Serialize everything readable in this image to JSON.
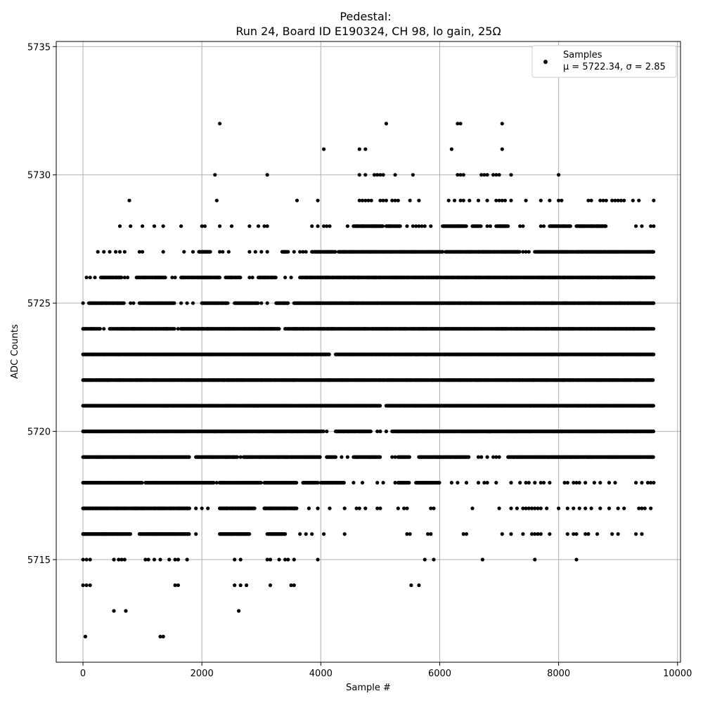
{
  "chart_data": {
    "type": "scatter",
    "title": "Pedestal:",
    "subtitle": "Run 24, Board ID E190324, CH 98, lo gain, 25Ω",
    "xlabel": "Sample #",
    "ylabel": "ADC Counts",
    "xlim": [
      -450,
      10050
    ],
    "ylim": [
      5711,
      5735.2
    ],
    "x_ticks": [
      0,
      2000,
      4000,
      6000,
      8000,
      10000
    ],
    "x_tick_labels": [
      "0",
      "2000",
      "4000",
      "6000",
      "8000",
      "10000"
    ],
    "y_ticks": [
      5715,
      5720,
      5725,
      5730,
      5735
    ],
    "y_tick_labels": [
      "5715",
      "5720",
      "5725",
      "5730",
      "5735"
    ],
    "grid": true,
    "legend": {
      "placement": "top-right",
      "series_name": "Samples",
      "stats_line": "μ = 5722.34, σ = 2.85"
    },
    "marker_color": "#000000",
    "n_samples": 9600,
    "levels": [
      {
        "adc": 5712,
        "x": [
          40,
          1300,
          1350
        ]
      },
      {
        "adc": 5713,
        "x": [
          520,
          720,
          2620
        ]
      },
      {
        "adc": 5714,
        "x": [
          0,
          60,
          120,
          1550,
          1600,
          2550,
          2650,
          2750,
          3150,
          3500,
          3550,
          5520,
          5650
        ]
      },
      {
        "adc": 5715,
        "x": [
          0,
          60,
          120,
          520,
          600,
          650,
          700,
          1050,
          1100,
          1200,
          1300,
          1450,
          1550,
          1600,
          1750,
          2550,
          2650,
          3100,
          3150,
          3300,
          3400,
          3450,
          3550,
          3950,
          5750,
          5900,
          6720,
          7600,
          8300
        ]
      },
      {
        "adc": 5716,
        "segments": [
          [
            0,
            800
          ],
          [
            950,
            1800
          ],
          [
            2300,
            2800
          ],
          [
            3100,
            3400
          ]
        ],
        "x": [
          1900,
          3650,
          3750,
          3850,
          4050,
          4400,
          5450,
          5500,
          5800,
          5850,
          6400,
          6450,
          7050,
          7200,
          7400,
          7550,
          7600,
          7650,
          7700,
          7850,
          8150,
          8250,
          8300,
          8450,
          8500,
          8650,
          8900,
          9000,
          9300,
          9400
        ]
      },
      {
        "adc": 5717,
        "segments": [
          [
            0,
            1800
          ],
          [
            2300,
            2900
          ],
          [
            3050,
            3600
          ]
        ],
        "x": [
          1900,
          2000,
          2100,
          3800,
          3950,
          4150,
          4400,
          4600,
          4650,
          4750,
          4950,
          5000,
          5300,
          5400,
          5450,
          5850,
          5900,
          6550,
          7000,
          7200,
          7300,
          7400,
          7450,
          7500,
          7550,
          7600,
          7650,
          7700,
          7800,
          8000,
          8150,
          8250,
          8350,
          8450,
          8550,
          8700,
          8850,
          9000,
          9100,
          9350,
          9400,
          9450,
          9550
        ]
      },
      {
        "adc": 5718,
        "segments": [
          [
            0,
            1000
          ],
          [
            1050,
            2200
          ],
          [
            2300,
            3000
          ],
          [
            3050,
            3600
          ],
          [
            3700,
            3950
          ],
          [
            4000,
            4400
          ],
          [
            5300,
            5500
          ],
          [
            5600,
            6000
          ]
        ],
        "x": [
          2250,
          4550,
          4700,
          4950,
          5050,
          5250,
          6200,
          6300,
          6450,
          6650,
          6750,
          6800,
          6950,
          7200,
          7350,
          7450,
          7500,
          7600,
          7700,
          7750,
          7850,
          8100,
          8150,
          8250,
          8300,
          8350,
          8450,
          8600,
          8700,
          8850,
          8950,
          9300,
          9400,
          9500,
          9550,
          9600
        ]
      },
      {
        "adc": 5719,
        "segments": [
          [
            0,
            1800
          ],
          [
            1900,
            2600
          ],
          [
            2700,
            4000
          ],
          [
            4100,
            4250
          ],
          [
            4550,
            5000
          ],
          [
            5300,
            5500
          ],
          [
            5650,
            6500
          ],
          [
            7150,
            9600
          ]
        ],
        "x": [
          2650,
          4350,
          4450,
          5200,
          5250,
          6650,
          6700,
          6800,
          6900,
          6950,
          7000
        ]
      },
      {
        "adc": 5720,
        "segments": [
          [
            0,
            4050
          ],
          [
            4250,
            4850
          ],
          [
            5200,
            9600
          ]
        ],
        "x": [
          4100,
          4950,
          5000,
          5100
        ]
      },
      {
        "adc": 5721,
        "segments": [
          [
            0,
            5000
          ],
          [
            5100,
            9600
          ]
        ],
        "x": []
      },
      {
        "adc": 5722,
        "segments": [
          [
            0,
            9600
          ]
        ],
        "x": []
      },
      {
        "adc": 5723,
        "segments": [
          [
            0,
            4150
          ],
          [
            4250,
            9600
          ]
        ],
        "x": []
      },
      {
        "adc": 5724,
        "segments": [
          [
            0,
            300
          ],
          [
            450,
            1550
          ],
          [
            1650,
            3300
          ],
          [
            3400,
            9600
          ]
        ],
        "x": [
          350,
          1600
        ]
      },
      {
        "adc": 5725,
        "segments": [
          [
            100,
            700
          ],
          [
            950,
            1550
          ],
          [
            2000,
            2450
          ],
          [
            2550,
            2950
          ],
          [
            3250,
            3450
          ],
          [
            3550,
            9600
          ]
        ],
        "x": [
          0,
          800,
          850,
          1650,
          1750,
          1850,
          3000,
          3100
        ]
      },
      {
        "adc": 5726,
        "segments": [
          [
            300,
            650
          ],
          [
            900,
            1400
          ],
          [
            1650,
            2300
          ],
          [
            2400,
            2650
          ],
          [
            2950,
            3250
          ],
          [
            3650,
            9600
          ]
        ],
        "x": [
          60,
          120,
          200,
          700,
          750,
          1500,
          1550,
          2800,
          2850,
          3400,
          3500
        ]
      },
      {
        "adc": 5727,
        "segments": [
          [
            1950,
            2150
          ],
          [
            3350,
            3450
          ],
          [
            3850,
            4250
          ],
          [
            4300,
            6050
          ],
          [
            6100,
            7350
          ],
          [
            7600,
            9600
          ]
        ],
        "x": [
          250,
          350,
          450,
          550,
          620,
          700,
          950,
          1000,
          1350,
          1700,
          1850,
          2300,
          2350,
          2450,
          2800,
          2900,
          3000,
          3100,
          3550,
          3650,
          3700,
          3750,
          7400,
          7450,
          7500
        ]
      },
      {
        "adc": 5728,
        "segments": [
          [
            4550,
            5050
          ],
          [
            5100,
            5350
          ],
          [
            6050,
            6450
          ],
          [
            6550,
            6700
          ],
          [
            6950,
            7150
          ],
          [
            7850,
            8200
          ],
          [
            8300,
            8800
          ]
        ],
        "x": [
          620,
          800,
          1000,
          1200,
          1350,
          1650,
          2000,
          2050,
          2300,
          2500,
          2800,
          2950,
          3050,
          3100,
          3850,
          3950,
          4050,
          4100,
          4150,
          4450,
          5450,
          5550,
          5600,
          5650,
          5700,
          5750,
          5850,
          6800,
          6850,
          7350,
          7400,
          7700,
          7750,
          9300,
          9400,
          9550,
          9600
        ]
      },
      {
        "adc": 5729,
        "x": [
          780,
          2250,
          3600,
          3950,
          4650,
          4700,
          4750,
          4800,
          4850,
          5000,
          5050,
          5100,
          5200,
          5250,
          5300,
          5500,
          5650,
          6150,
          6250,
          6350,
          6400,
          6500,
          6650,
          6800,
          6950,
          7000,
          7050,
          7100,
          7200,
          7450,
          7700,
          7850,
          8000,
          8050,
          8500,
          8550,
          8700,
          8750,
          8800,
          8900,
          8950,
          9000,
          9050,
          9100,
          9250,
          9350,
          9600
        ]
      },
      {
        "adc": 5730,
        "x": [
          2220,
          3100,
          4650,
          4750,
          4900,
          4950,
          5000,
          5050,
          5250,
          5550,
          6300,
          6350,
          6400,
          6700,
          6750,
          6800,
          6900,
          6950,
          7000,
          7200,
          8000
        ]
      },
      {
        "adc": 5731,
        "x": [
          4050,
          4650,
          4750,
          6200,
          7050
        ]
      },
      {
        "adc": 5732,
        "x": [
          2300,
          5100,
          6300,
          6350,
          7050
        ]
      }
    ]
  }
}
